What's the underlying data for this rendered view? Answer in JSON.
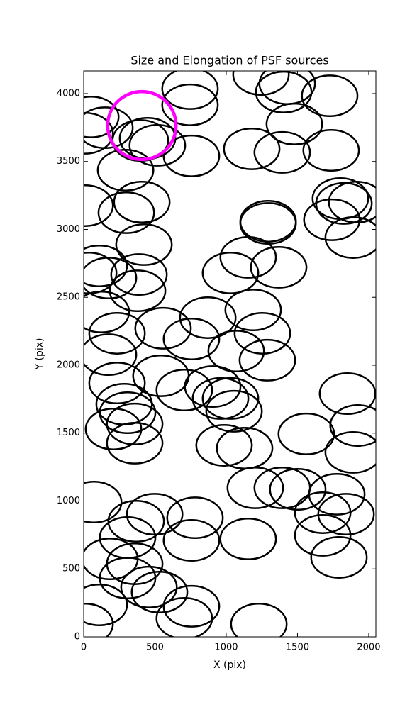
{
  "chart_data": {
    "type": "ellipse",
    "title": "Size and Elongation of PSF sources",
    "x_label": "X (pix)",
    "y_label": "Y (pix)",
    "xlim": [
      0,
      2050
    ],
    "ylim": [
      0,
      4167
    ],
    "xticks": [
      0,
      500,
      1000,
      1500,
      2000
    ],
    "yticks": [
      0,
      500,
      1000,
      1500,
      2000,
      2500,
      3000,
      3500,
      4000
    ],
    "ellipse_width": 390,
    "ellipse_height": 300,
    "color": "#000000",
    "x": [
      50,
      10,
      149,
      398,
      448,
      517,
      756,
      746,
      746,
      1244,
      1403,
      1428,
      1726,
      1478,
      1179,
      1393,
      1736,
      294,
      10,
      408,
      299,
      1801,
      1826,
      1915,
      1741,
      1891,
      1294,
      1294,
      423,
      109,
      35,
      174,
      388,
      378,
      1030,
      1154,
      1368,
      124,
      234,
      174,
      557,
      871,
      756,
      1189,
      1254,
      1289,
      1070,
      542,
      234,
      284,
      706,
      905,
      960,
      1030,
      1055,
      308,
      358,
      209,
      358,
      985,
      1129,
      1851,
      1925,
      1562,
      1891,
      1502,
      1776,
      1677,
      1393,
      1204,
      1841,
      1791,
      1677,
      70,
      368,
      308,
      498,
      781,
      756,
      1154,
      184,
      358,
      308,
      458,
      532,
      109,
      10,
      756,
      706,
      1229
    ],
    "y": [
      3828,
      3708,
      3749,
      3655,
      3671,
      3619,
      3541,
      3917,
      4037,
      4141,
      4011,
      4073,
      3984,
      3776,
      3593,
      3567,
      3582,
      3436,
      3175,
      3201,
      3123,
      3227,
      3191,
      3201,
      3071,
      2940,
      3060,
      3044,
      2888,
      2731,
      2679,
      2642,
      2668,
      2548,
      2679,
      2794,
      2721,
      2392,
      2235,
      2078,
      2272,
      2350,
      2193,
      2407,
      2235,
      2037,
      2104,
      1922,
      1869,
      1713,
      1817,
      1843,
      1755,
      1755,
      1661,
      1650,
      1567,
      1530,
      1426,
      1410,
      1389,
      1791,
      1556,
      1494,
      1358,
      1086,
      1050,
      914,
      1097,
      1097,
      903,
      585,
      747,
      992,
      851,
      731,
      903,
      877,
      710,
      721,
      574,
      538,
      433,
      366,
      329,
      235,
      94,
      225,
      136,
      94
    ],
    "highlight": {
      "x": 408,
      "y": 3765,
      "width": 480,
      "height": 500,
      "color": "#ff00ff"
    }
  }
}
